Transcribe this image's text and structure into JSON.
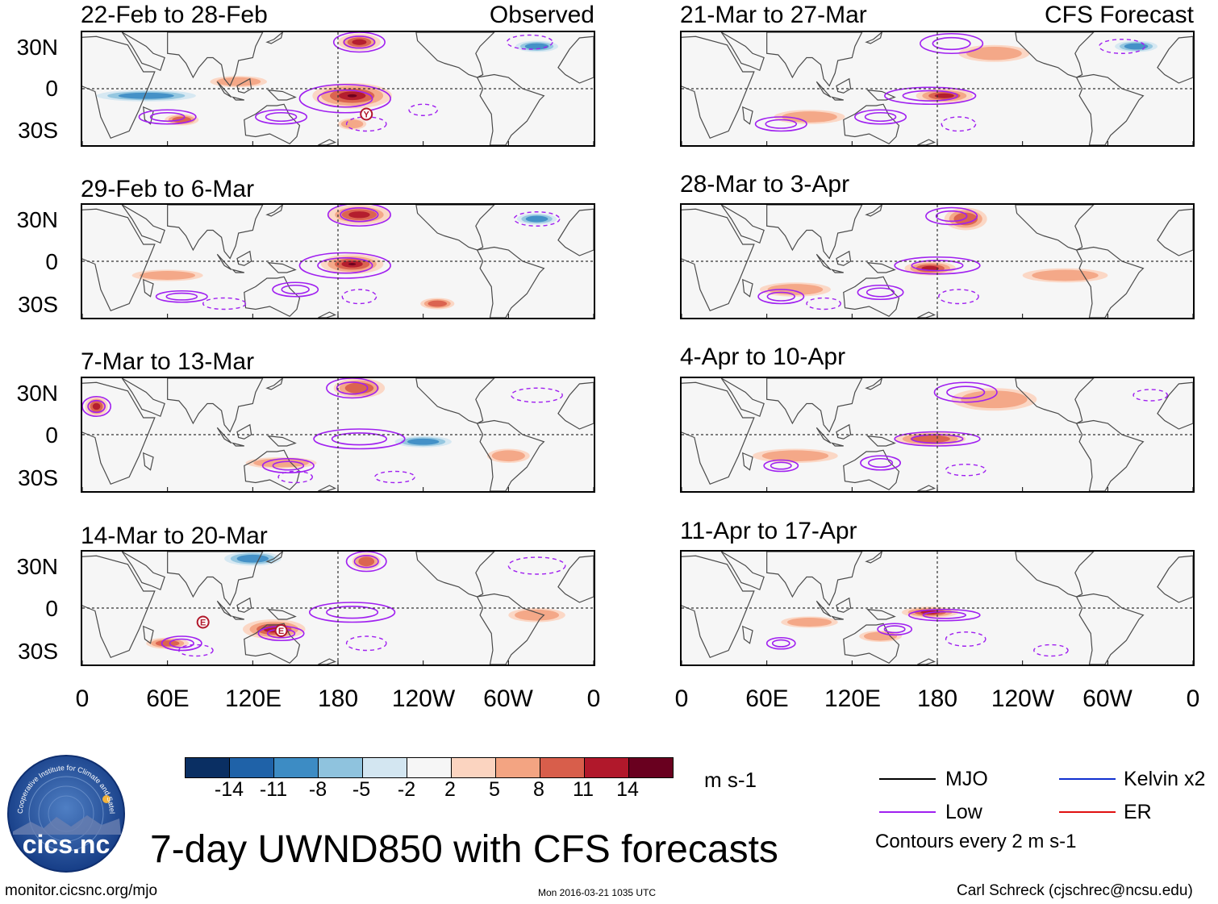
{
  "figure": {
    "main_title": "7-day UWND850 with CFS forecasts",
    "units": "m s-1",
    "footer_left": "monitor.cicsnc.org/mjo",
    "footer_center": "Mon 2016-03-21 1035 UTC",
    "footer_right": "Carl Schreck (cjschrec@ncsu.edu)",
    "logo_text": "cics.nc",
    "logo_ring_text": "Cooperative Institute for Climate and Satellites",
    "contour_note": "Contours every 2 m s-1"
  },
  "legend": {
    "items": [
      {
        "label": "MJO",
        "color": "#000000"
      },
      {
        "label": "Low",
        "color": "#a020f0"
      },
      {
        "label": "Kelvin x2",
        "color": "#1030d0"
      },
      {
        "label": "ER",
        "color": "#e01010"
      }
    ]
  },
  "colorbar": {
    "labels": [
      "-14",
      "-11",
      "-8",
      "-5",
      "-2",
      "2",
      "5",
      "8",
      "11",
      "14"
    ],
    "colors": [
      "#0a2f63",
      "#1f62a8",
      "#3d8cc4",
      "#8fc3de",
      "#d3e6f1",
      "#f6f6f6",
      "#fbd4c0",
      "#f3a482",
      "#d85e4b",
      "#b1182b",
      "#69001f"
    ]
  },
  "chart_data": {
    "type": "heatmap",
    "variable": "UWND850 (7-day mean 850-hPa zonal wind anomaly)",
    "lat_ticks": [
      "30N",
      "0",
      "30S"
    ],
    "lon_ticks": [
      "0",
      "60E",
      "120E",
      "180",
      "120W",
      "60W",
      "0"
    ],
    "column_headers": {
      "left": "Observed",
      "right": "CFS Forecast"
    },
    "panels": [
      {
        "column": "left",
        "row": 0,
        "period": "22-Feb to 28-Feb",
        "source": "Observed",
        "markers": [
          {
            "label": "Y",
            "lon": 200,
            "lat": -18
          }
        ]
      },
      {
        "column": "left",
        "row": 1,
        "period": "29-Feb to 6-Mar",
        "source": "Observed",
        "markers": []
      },
      {
        "column": "left",
        "row": 2,
        "period": "7-Mar to 13-Mar",
        "source": "Observed",
        "markers": []
      },
      {
        "column": "left",
        "row": 3,
        "period": "14-Mar to 20-Mar",
        "source": "Observed",
        "markers": [
          {
            "label": "E",
            "lon": 85,
            "lat": -10
          },
          {
            "label": "E",
            "lon": 140,
            "lat": -16
          }
        ]
      },
      {
        "column": "right",
        "row": 0,
        "period": "21-Mar to 27-Mar",
        "source": "CFS Forecast",
        "markers": []
      },
      {
        "column": "right",
        "row": 1,
        "period": "28-Mar to 3-Apr",
        "source": "CFS Forecast",
        "markers": []
      },
      {
        "column": "right",
        "row": 2,
        "period": "4-Apr to 10-Apr",
        "source": "CFS Forecast",
        "markers": []
      },
      {
        "column": "right",
        "row": 3,
        "period": "11-Apr to 17-Apr",
        "source": "CFS Forecast",
        "markers": []
      }
    ]
  }
}
